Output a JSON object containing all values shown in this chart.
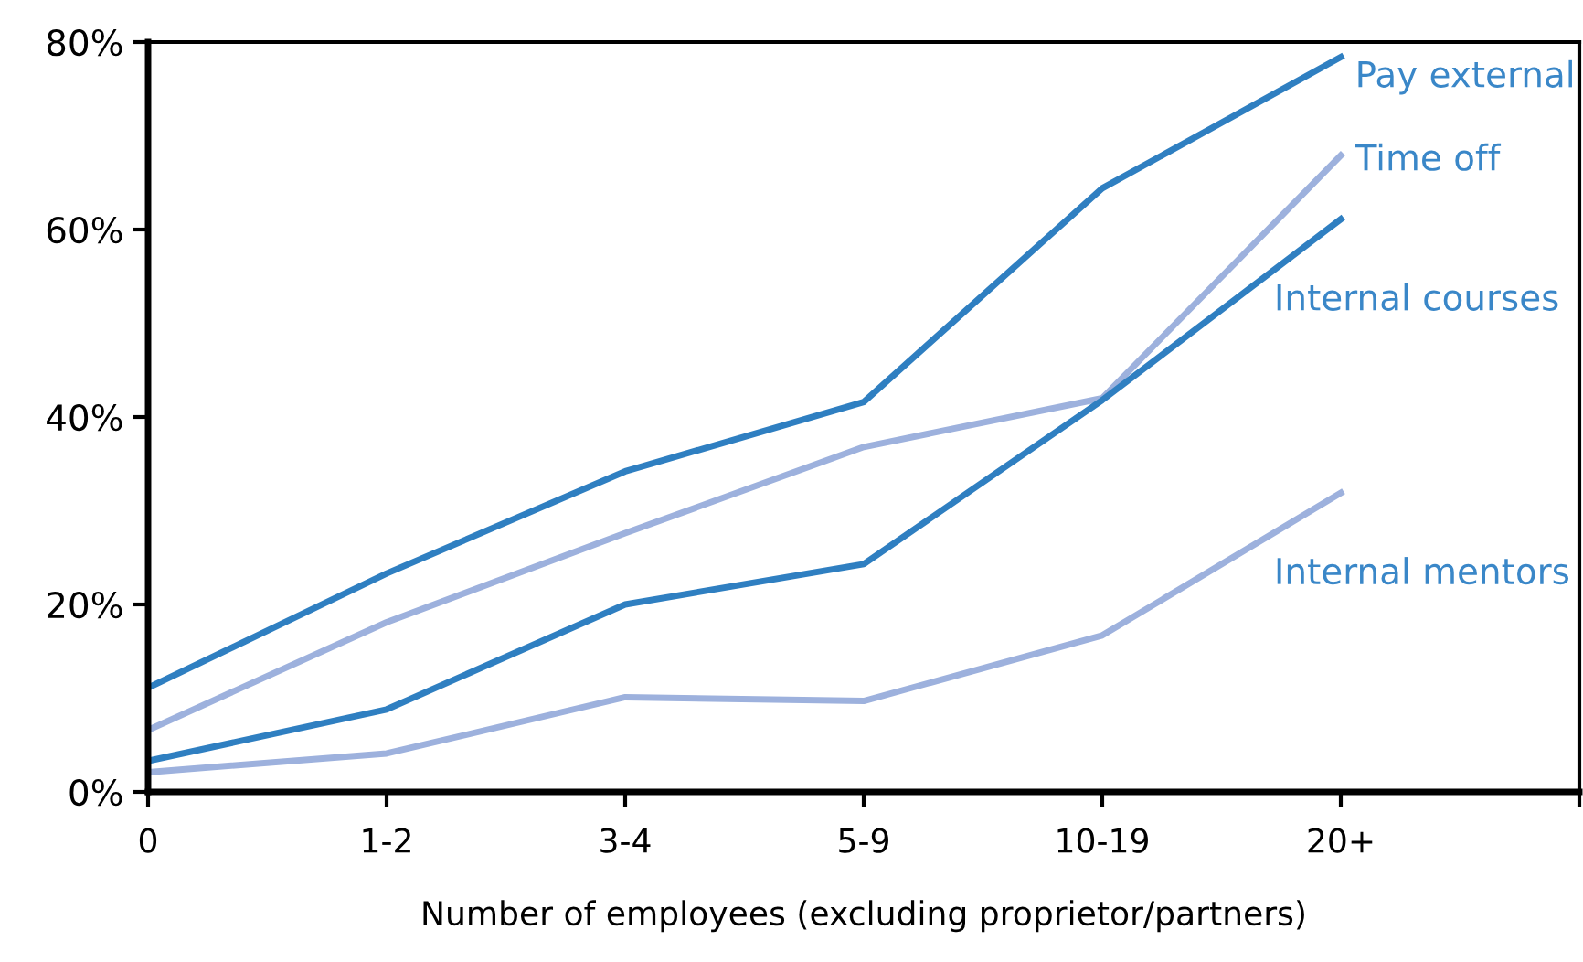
{
  "chart_data": {
    "type": "line",
    "xlabel": "Number of employees (excluding proprietor/partners)",
    "categories": [
      "0",
      "1-2",
      "3-4",
      "5-9",
      "10-19",
      "20+",
      null
    ],
    "series": [
      {
        "name": "Pay external",
        "color": "#2f7fc1",
        "values": [
          11.1,
          23.3,
          34.2,
          41.6,
          64.4,
          78.4,
          null
        ]
      },
      {
        "name": "Time off",
        "color": "#9db1dd",
        "values": [
          6.6,
          18.1,
          27.6,
          36.8,
          42,
          67.9,
          null
        ]
      },
      {
        "name": "Internal courses",
        "color": "#2f7fc1",
        "values": [
          3.3,
          8.8,
          20,
          24.3,
          41.8,
          61.1,
          null
        ]
      },
      {
        "name": "Internal mentors",
        "color": "#9db1dd",
        "values": [
          2.1,
          4.1,
          10.1,
          9.7,
          16.7,
          31.9,
          null
        ]
      }
    ],
    "ylim": [
      0,
      80
    ],
    "yticks": [
      {
        "value": 0,
        "label": "0%"
      },
      {
        "value": 20,
        "label": "20%"
      },
      {
        "value": 40,
        "label": "40%"
      },
      {
        "value": 60,
        "label": "60%"
      },
      {
        "value": 80,
        "label": "80%"
      }
    ],
    "grid": false,
    "legend": false,
    "marker": "none",
    "line_style": "solid"
  }
}
